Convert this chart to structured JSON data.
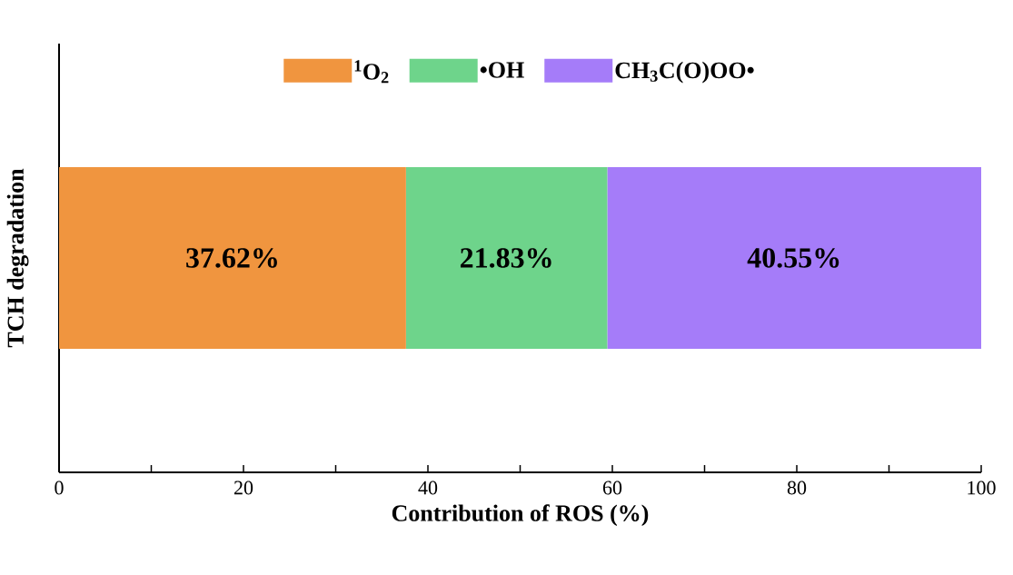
{
  "chart_data": {
    "type": "bar",
    "orientation": "horizontal",
    "stacked": true,
    "categories": [
      null
    ],
    "xlabel": "Contribution of ROS (%)",
    "ylabel": "TCH degradation",
    "xlim": [
      0,
      100
    ],
    "xticks": [
      0,
      {
        "value": 10,
        "label": null
      },
      20,
      {
        "value": 30,
        "label": null
      },
      40,
      {
        "value": 50,
        "label": null
      },
      60,
      {
        "value": 70,
        "label": null
      },
      80,
      {
        "value": 90,
        "label": null
      },
      100
    ],
    "legend": "top",
    "series": [
      {
        "name": "$^{1}$O$_{2}$",
        "color": "#f0953f",
        "values": [
          37.62
        ],
        "value_labels": [
          "37.62%"
        ]
      },
      {
        "name": "•OH",
        "color": "#6ed48b",
        "values": [
          21.83
        ],
        "value_labels": [
          "21.83%"
        ]
      },
      {
        "name": "CH$_{3}$C(O)OO•",
        "color": "#a57cf9",
        "values": [
          40.55
        ],
        "value_labels": [
          "40.55%"
        ]
      }
    ]
  }
}
